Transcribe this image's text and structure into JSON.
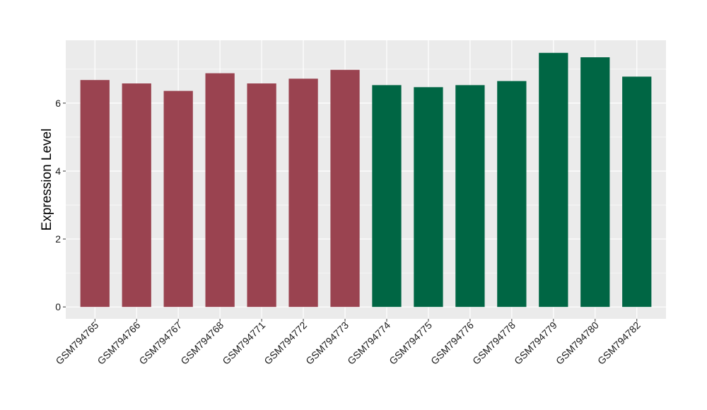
{
  "chart_data": {
    "type": "bar",
    "title": "",
    "xlabel": "",
    "ylabel": "Expression Level",
    "categories": [
      "GSM794765",
      "GSM794766",
      "GSM794767",
      "GSM794768",
      "GSM794771",
      "GSM794772",
      "GSM794773",
      "GSM794774",
      "GSM794775",
      "GSM794776",
      "GSM794778",
      "GSM794779",
      "GSM794780",
      "GSM794782"
    ],
    "values": [
      6.68,
      6.58,
      6.36,
      6.88,
      6.58,
      6.72,
      6.98,
      6.53,
      6.47,
      6.53,
      6.65,
      7.48,
      7.35,
      6.78
    ],
    "groups": [
      "a",
      "a",
      "a",
      "a",
      "a",
      "a",
      "a",
      "b",
      "b",
      "b",
      "b",
      "b",
      "b",
      "b"
    ],
    "group_colors": {
      "a": "#9a4350",
      "b": "#006644"
    },
    "ylim": [
      -0.35,
      7.85
    ],
    "yticks": [
      0,
      2,
      4,
      6
    ],
    "ytick_labels": [
      "0",
      "2",
      "4",
      "6"
    ],
    "grid": true,
    "panel_background": "#ebebeb",
    "grid_color": "#ffffff"
  }
}
